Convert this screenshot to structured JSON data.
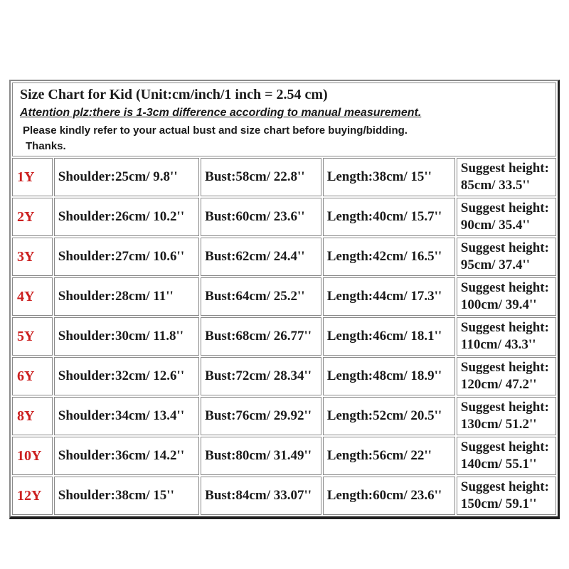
{
  "header": {
    "title": "Size Chart for Kid (Unit:cm/inch/1 inch = 2.54 cm)",
    "attention": "Attention plz:there is 1-3cm difference according to manual measurement.",
    "note": "Please kindly refer to your actual bust and size chart before buying/bidding.",
    "thanks": "Thanks."
  },
  "table": {
    "suggest_label": "Suggest height:",
    "rows": [
      {
        "size": "1Y",
        "shoulder": "Shoulder:25cm/ 9.8''",
        "bust": "Bust:58cm/ 22.8''",
        "length": "Length:38cm/ 15''",
        "suggest": "85cm/ 33.5''"
      },
      {
        "size": "2Y",
        "shoulder": "Shoulder:26cm/ 10.2''",
        "bust": "Bust:60cm/ 23.6''",
        "length": "Length:40cm/ 15.7''",
        "suggest": "90cm/ 35.4''"
      },
      {
        "size": "3Y",
        "shoulder": "Shoulder:27cm/ 10.6''",
        "bust": "Bust:62cm/ 24.4''",
        "length": "Length:42cm/ 16.5''",
        "suggest": "95cm/ 37.4''"
      },
      {
        "size": "4Y",
        "shoulder": "Shoulder:28cm/ 11''",
        "bust": "Bust:64cm/ 25.2''",
        "length": "Length:44cm/ 17.3''",
        "suggest": "100cm/ 39.4''"
      },
      {
        "size": "5Y",
        "shoulder": "Shoulder:30cm/ 11.8''",
        "bust": "Bust:68cm/ 26.77''",
        "length": "Length:46cm/ 18.1''",
        "suggest": "110cm/ 43.3''"
      },
      {
        "size": "6Y",
        "shoulder": "Shoulder:32cm/ 12.6''",
        "bust": "Bust:72cm/ 28.34''",
        "length": "Length:48cm/ 18.9''",
        "suggest": "120cm/ 47.2''"
      },
      {
        "size": "8Y",
        "shoulder": "Shoulder:34cm/ 13.4''",
        "bust": "Bust:76cm/ 29.92''",
        "length": "Length:52cm/ 20.5''",
        "suggest": "130cm/ 51.2''"
      },
      {
        "size": "10Y",
        "shoulder": "Shoulder:36cm/ 14.2''",
        "bust": "Bust:80cm/ 31.49''",
        "length": "Length:56cm/ 22''",
        "suggest": "140cm/ 55.1''"
      },
      {
        "size": "12Y",
        "shoulder": "Shoulder:38cm/ 15''",
        "bust": "Bust:84cm/ 33.07''",
        "length": "Length:60cm/ 23.6''",
        "suggest": "150cm/ 59.1''"
      }
    ]
  },
  "colors": {
    "size_label": "#cc2020",
    "text": "#1a1a1a",
    "cell_border": "#8a8a8a",
    "frame_light": "#8a8a8a",
    "frame_dark": "#1f1f1f",
    "background": "#ffffff"
  },
  "chart_data": {
    "type": "table",
    "title": "Size Chart for Kid (Unit:cm/inch/1 inch = 2.54 cm)",
    "unit_note": "1 inch = 2.54 cm",
    "columns": [
      "Size",
      "Shoulder",
      "Bust",
      "Length",
      "Suggest height"
    ],
    "rows": [
      {
        "size": "1Y",
        "shoulder_cm": 25,
        "shoulder_in": 9.8,
        "bust_cm": 58,
        "bust_in": 22.8,
        "length_cm": 38,
        "length_in": 15,
        "height_cm": 85,
        "height_in": 33.5
      },
      {
        "size": "2Y",
        "shoulder_cm": 26,
        "shoulder_in": 10.2,
        "bust_cm": 60,
        "bust_in": 23.6,
        "length_cm": 40,
        "length_in": 15.7,
        "height_cm": 90,
        "height_in": 35.4
      },
      {
        "size": "3Y",
        "shoulder_cm": 27,
        "shoulder_in": 10.6,
        "bust_cm": 62,
        "bust_in": 24.4,
        "length_cm": 42,
        "length_in": 16.5,
        "height_cm": 95,
        "height_in": 37.4
      },
      {
        "size": "4Y",
        "shoulder_cm": 28,
        "shoulder_in": 11,
        "bust_cm": 64,
        "bust_in": 25.2,
        "length_cm": 44,
        "length_in": 17.3,
        "height_cm": 100,
        "height_in": 39.4
      },
      {
        "size": "5Y",
        "shoulder_cm": 30,
        "shoulder_in": 11.8,
        "bust_cm": 68,
        "bust_in": 26.77,
        "length_cm": 46,
        "length_in": 18.1,
        "height_cm": 110,
        "height_in": 43.3
      },
      {
        "size": "6Y",
        "shoulder_cm": 32,
        "shoulder_in": 12.6,
        "bust_cm": 72,
        "bust_in": 28.34,
        "length_cm": 48,
        "length_in": 18.9,
        "height_cm": 120,
        "height_in": 47.2
      },
      {
        "size": "8Y",
        "shoulder_cm": 34,
        "shoulder_in": 13.4,
        "bust_cm": 76,
        "bust_in": 29.92,
        "length_cm": 52,
        "length_in": 20.5,
        "height_cm": 130,
        "height_in": 51.2
      },
      {
        "size": "10Y",
        "shoulder_cm": 36,
        "shoulder_in": 14.2,
        "bust_cm": 80,
        "bust_in": 31.49,
        "length_cm": 56,
        "length_in": 22,
        "height_cm": 140,
        "height_in": 55.1
      },
      {
        "size": "12Y",
        "shoulder_cm": 38,
        "shoulder_in": 15,
        "bust_cm": 84,
        "bust_in": 33.07,
        "length_cm": 60,
        "length_in": 23.6,
        "height_cm": 150,
        "height_in": 59.1
      }
    ]
  }
}
